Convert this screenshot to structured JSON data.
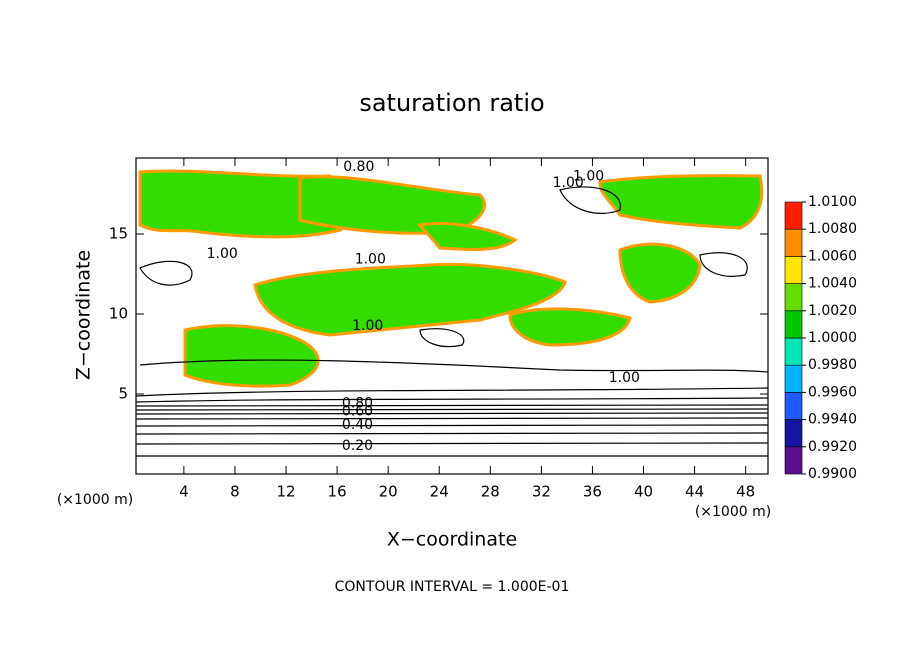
{
  "chart_data": {
    "type": "contour",
    "title": "saturation ratio",
    "xlabel": "X−coordinate",
    "ylabel": "Z−coordinate",
    "xunit": "(×1000 m)",
    "yunit": "(×1000 m)",
    "footer": "CONTOUR INTERVAL = 1.000E-01",
    "xlim": [
      0.25,
      49.75
    ],
    "ylim": [
      0,
      19.75
    ],
    "xticks": [
      4,
      8,
      12,
      16,
      20,
      24,
      28,
      32,
      36,
      40,
      44,
      48
    ],
    "yticks": [
      5,
      10,
      15
    ],
    "colorbar": {
      "ticks": [
        {
          "value": 0.99,
          "label": "0.9900"
        },
        {
          "value": 0.992,
          "label": "0.9920"
        },
        {
          "value": 0.994,
          "label": "0.9940"
        },
        {
          "value": 0.996,
          "label": "0.9960"
        },
        {
          "value": 0.998,
          "label": "0.9980"
        },
        {
          "value": 1.0,
          "label": "1.0000"
        },
        {
          "value": 1.002,
          "label": "1.0020"
        },
        {
          "value": 1.004,
          "label": "1.0040"
        },
        {
          "value": 1.006,
          "label": "1.0060"
        },
        {
          "value": 1.008,
          "label": "1.0080"
        },
        {
          "value": 1.01,
          "label": "1.0100"
        }
      ],
      "colors": [
        "#5a0f8c",
        "#1414a0",
        "#1e5aff",
        "#00b4ff",
        "#00e6b4",
        "#00c800",
        "#64dc00",
        "#ffe600",
        "#ff8c00",
        "#ff1e00"
      ]
    },
    "contour_labels": [
      {
        "text": "0.80",
        "x": 17.7,
        "y": 19.2
      },
      {
        "text": "1.00",
        "x": 34.1,
        "y": 18.2
      },
      {
        "text": "1.00",
        "x": 35.7,
        "y": 18.6
      },
      {
        "text": "1.00",
        "x": 7.0,
        "y": 13.75
      },
      {
        "text": "1.00",
        "x": 18.6,
        "y": 13.4
      },
      {
        "text": "1.00",
        "x": 18.4,
        "y": 9.25
      },
      {
        "text": "1.00",
        "x": 38.5,
        "y": 6.0
      },
      {
        "text": "0.80",
        "x": 17.6,
        "y": 4.4
      },
      {
        "text": "0.60",
        "x": 17.6,
        "y": 3.9
      },
      {
        "text": "0.40",
        "x": 17.6,
        "y": 3.06
      },
      {
        "text": "0.20",
        "x": 17.6,
        "y": 1.75
      }
    ]
  }
}
